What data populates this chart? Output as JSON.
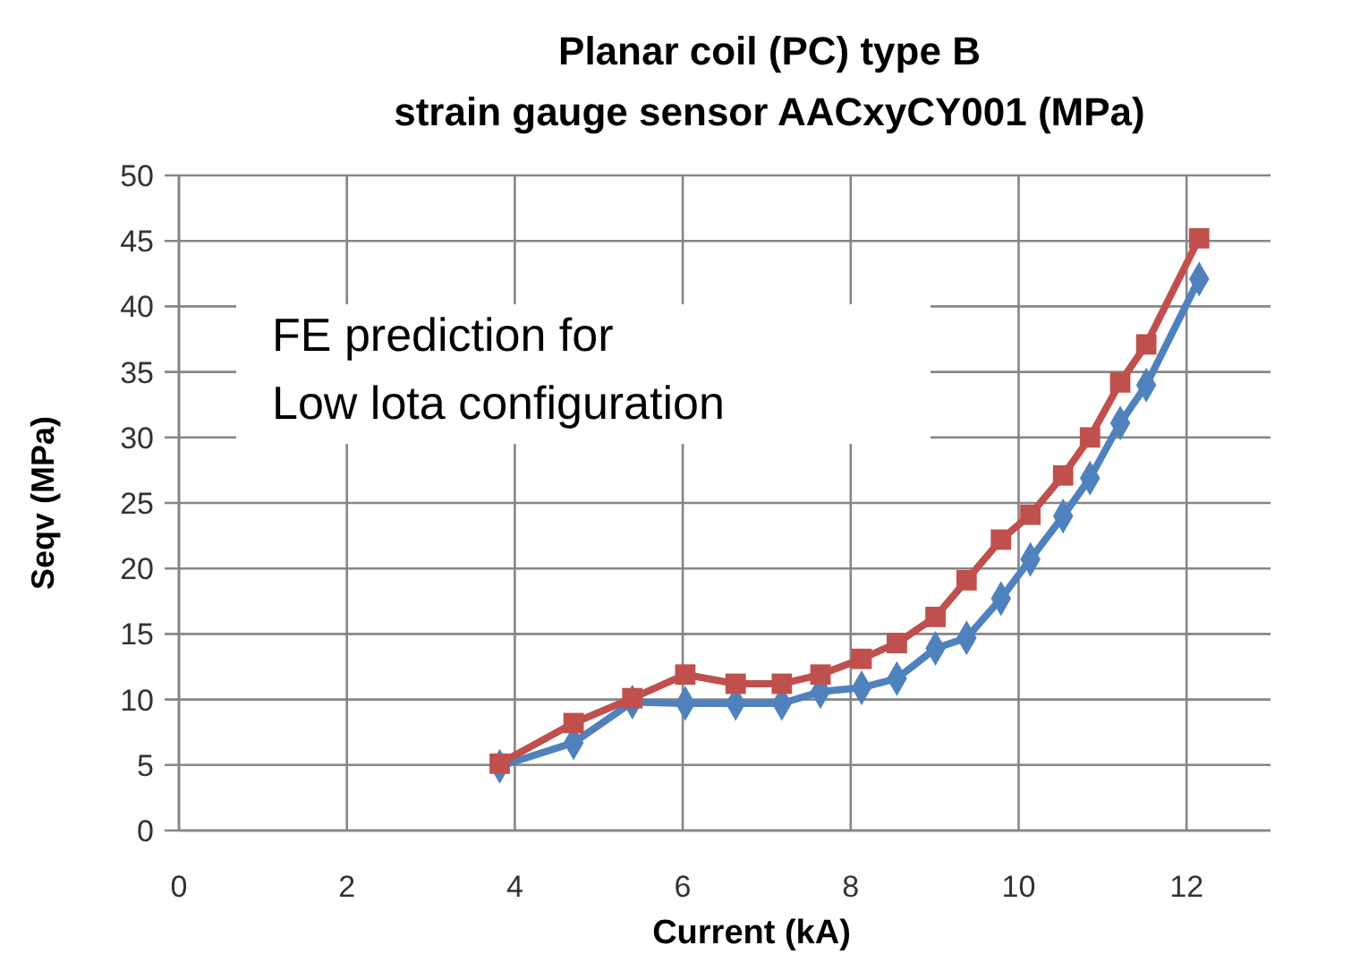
{
  "chart_data": {
    "type": "line",
    "title": "Planar coil (PC) type B\nstrain gauge sensor AACxyCY001 (MPa)",
    "xlabel": "Current (kA)",
    "ylabel": "Seqv (MPa)",
    "annotations": [
      "FE prediction for\nLow lota configuration"
    ],
    "x": [
      3.82,
      4.7,
      5.4,
      6.03,
      6.63,
      7.18,
      7.64,
      8.13,
      8.55,
      9.01,
      9.38,
      9.79,
      10.14,
      10.53,
      10.85,
      11.21,
      11.52,
      12.15
    ],
    "series": [
      {
        "color": "#4f81bd",
        "marker": "diamond",
        "values": [
          4.9,
          6.7,
          9.8,
          9.7,
          9.7,
          9.7,
          10.6,
          10.9,
          11.6,
          13.9,
          14.7,
          17.7,
          20.7,
          24.0,
          26.9,
          31.1,
          34.0,
          42.1
        ]
      },
      {
        "color": "#c0504d",
        "marker": "square",
        "values": [
          5.1,
          8.2,
          10.1,
          11.9,
          11.2,
          11.2,
          11.9,
          13.1,
          14.3,
          16.3,
          19.1,
          22.2,
          24.1,
          27.1,
          30.0,
          34.2,
          37.1,
          45.2
        ]
      }
    ],
    "xlim": [
      0,
      13
    ],
    "xticks": [
      0,
      2,
      4,
      6,
      8,
      10,
      12
    ],
    "ylim": [
      0,
      50
    ],
    "yticks": [
      0,
      5,
      10,
      15,
      20,
      25,
      30,
      35,
      40,
      45,
      50
    ],
    "grid": true,
    "line_style": "solid"
  }
}
